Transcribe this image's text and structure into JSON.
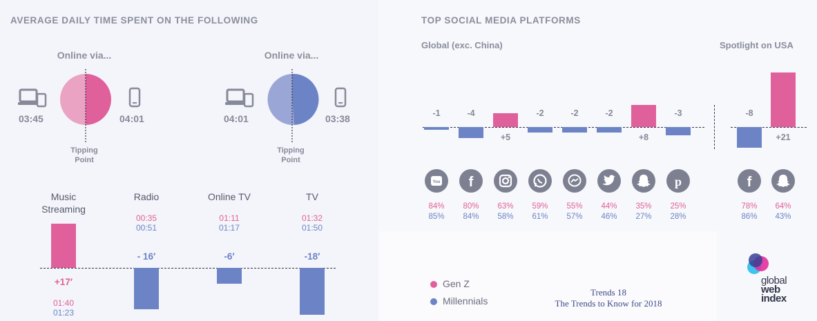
{
  "left": {
    "title": "AVERAGE DAILY TIME SPENT ON THE FOLLOWING",
    "online": [
      {
        "label": "Online via...",
        "pc_time": "03:45",
        "mobile_time": "04:01",
        "tipping": [
          "Tipping",
          "Point"
        ],
        "color_pc": "#eba3c4",
        "color_mobile": "#e0609b"
      },
      {
        "label": "Online via...",
        "pc_time": "04:01",
        "mobile_time": "03:38",
        "tipping": [
          "Tipping",
          "Point"
        ],
        "color_pc": "#9aa6d6",
        "color_mobile": "#6c84c6"
      }
    ]
  },
  "right": {
    "title": "TOP SOCIAL MEDIA PLATFORMS",
    "global_label": "Global (exc. China)",
    "usa_label": "Spotlight on USA"
  },
  "legend": {
    "genz": "Gen Z",
    "millennials": "Millennials"
  },
  "footer": {
    "line1": "Trends 18",
    "line2": "The Trends to Know for 2018"
  },
  "logo": {
    "line1": "global",
    "line2": "web",
    "line3": "index"
  },
  "colors": {
    "genz": "#e0609b",
    "millennials": "#6c84c6",
    "text": "#868999"
  },
  "chart_data": [
    {
      "type": "bar",
      "title": "AVERAGE DAILY TIME SPENT ON THE FOLLOWING",
      "categories": [
        "Music Streaming",
        "Radio",
        "Online TV",
        "TV"
      ],
      "category_label_lines": [
        [
          "Music",
          "Streaming"
        ],
        [
          "Radio"
        ],
        [
          "Online TV"
        ],
        [
          "TV"
        ]
      ],
      "values": [
        17,
        -16,
        -6,
        -18
      ],
      "value_labels": [
        "+17′",
        "- 16′",
        "-6′",
        "-18′"
      ],
      "genz_times": [
        "01:40",
        "00:35",
        "01:11",
        "01:32"
      ],
      "millennial_times": [
        "01:23",
        "00:51",
        "01:17",
        "01:50"
      ]
    },
    {
      "type": "bar",
      "title": "Global (exc. China)",
      "categories": [
        "YouTube",
        "Facebook",
        "Instagram",
        "WhatsApp",
        "Messenger",
        "Twitter",
        "Snapchat",
        "Pinterest"
      ],
      "icons": [
        "youtube-icon",
        "facebook-icon",
        "instagram-icon",
        "whatsapp-icon",
        "messenger-icon",
        "twitter-icon",
        "snapchat-icon",
        "pinterest-icon"
      ],
      "values": [
        -1,
        -4,
        5,
        -2,
        -2,
        -2,
        8,
        -3
      ],
      "value_labels": [
        "-1",
        "-4",
        "+5",
        "-2",
        "-2",
        "-2",
        "+8",
        "-3"
      ],
      "genz": [
        "84%",
        "80%",
        "63%",
        "59%",
        "55%",
        "44%",
        "35%",
        "25%"
      ],
      "millennials": [
        "85%",
        "84%",
        "58%",
        "61%",
        "57%",
        "46%",
        "27%",
        "28%"
      ]
    },
    {
      "type": "bar",
      "title": "Spotlight on USA",
      "categories": [
        "Facebook",
        "Snapchat"
      ],
      "icons": [
        "facebook-icon",
        "snapchat-icon"
      ],
      "values": [
        -8,
        21
      ],
      "value_labels": [
        "-8",
        "+21"
      ],
      "genz": [
        "78%",
        "64%"
      ],
      "millennials": [
        "86%",
        "43%"
      ]
    }
  ]
}
